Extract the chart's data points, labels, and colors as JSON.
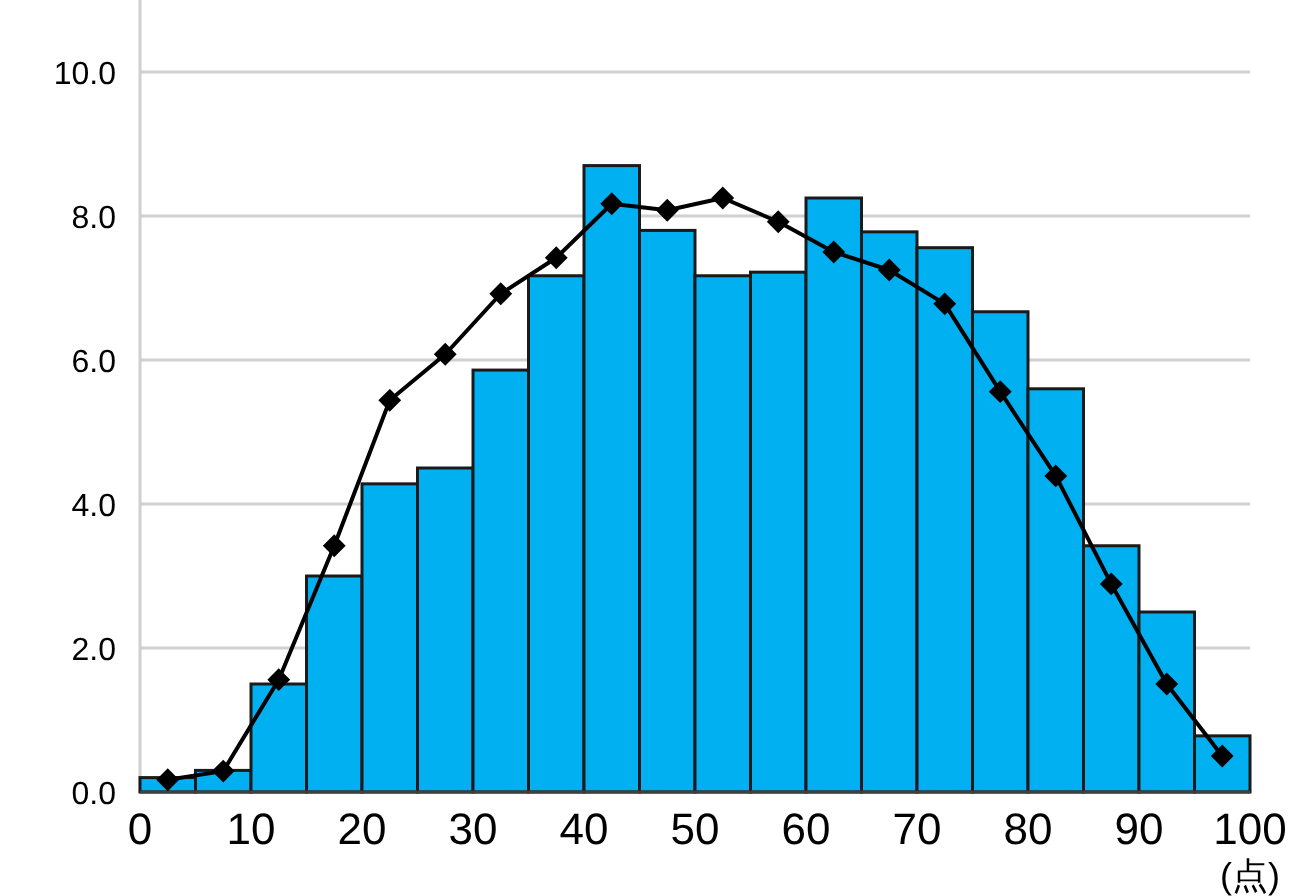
{
  "chart_data": {
    "type": "histogram",
    "xlabel": "(点)",
    "bins": [
      0,
      5,
      10,
      15,
      20,
      25,
      30,
      35,
      40,
      45,
      50,
      55,
      60,
      65,
      70,
      75,
      80,
      85,
      90,
      95,
      100
    ],
    "values": [
      0.2,
      0.3,
      1.5,
      3.0,
      4.28,
      4.5,
      5.86,
      7.17,
      8.7,
      7.8,
      7.17,
      7.22,
      8.25,
      7.78,
      7.56,
      6.67,
      5.6,
      3.42,
      2.5,
      0.78
    ],
    "color": "#00b0f0",
    "series": [
      {
        "type": "line",
        "color": "#000000",
        "marker": "diamond",
        "x": [
          2.5,
          7.5,
          12.5,
          17.5,
          22.5,
          27.5,
          32.5,
          37.5,
          42.5,
          47.5,
          52.5,
          57.5,
          62.5,
          67.5,
          72.5,
          77.5,
          82.5,
          87.5,
          92.5,
          97.5
        ],
        "values": [
          0.17,
          0.29,
          1.56,
          3.42,
          5.44,
          6.08,
          6.92,
          7.42,
          8.17,
          8.08,
          8.25,
          7.92,
          7.5,
          7.25,
          6.78,
          5.56,
          4.39,
          2.89,
          1.5,
          0.5
        ]
      }
    ],
    "xlim": [
      0,
      100
    ],
    "ylim": [
      0,
      11
    ],
    "xticks": [
      0,
      10,
      20,
      30,
      40,
      50,
      60,
      70,
      80,
      90,
      100
    ],
    "yticks": [
      {
        "value": 0,
        "label": "0.0"
      },
      {
        "value": 2,
        "label": "2.0"
      },
      {
        "value": 4,
        "label": "4.0"
      },
      {
        "value": 6,
        "label": "6.0"
      },
      {
        "value": 8,
        "label": "8.0"
      },
      {
        "value": 10,
        "label": "10.0"
      }
    ],
    "grid": "y"
  }
}
